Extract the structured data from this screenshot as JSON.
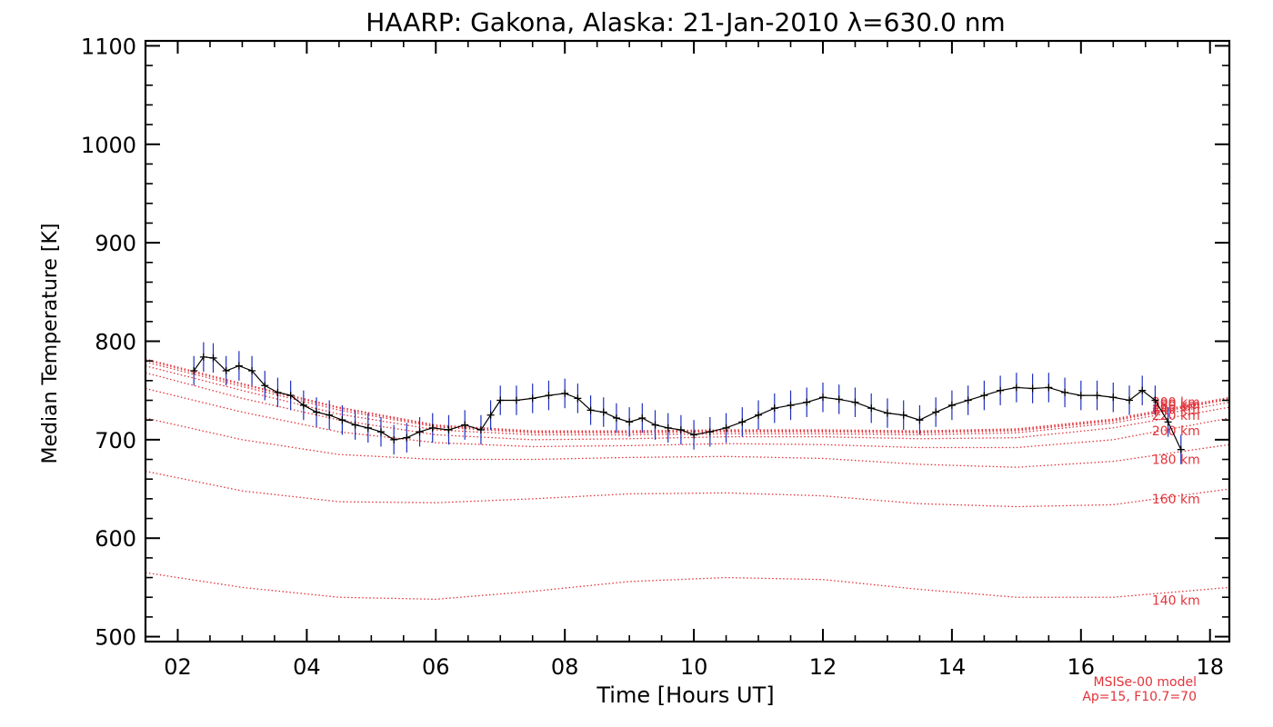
{
  "chart_data": {
    "type": "line",
    "title": "HAARP: Gakona,  Alaska: 21-Jan-2010 λ=630.0 nm",
    "xlabel": "Time [Hours UT]",
    "ylabel": "Median Temperature [K]",
    "xlim": [
      1.5,
      18.3
    ],
    "ylim": [
      495,
      1105
    ],
    "x_ticks": [
      2,
      4,
      6,
      8,
      10,
      12,
      14,
      16,
      18
    ],
    "x_tick_labels": [
      "02",
      "04",
      "06",
      "08",
      "10",
      "12",
      "14",
      "16",
      "18"
    ],
    "y_ticks": [
      500,
      600,
      700,
      800,
      900,
      1000,
      1100
    ],
    "y_tick_labels": [
      "500",
      "600",
      "700",
      "800",
      "900",
      "1000",
      "1100"
    ],
    "grid": false,
    "measured": {
      "color": "#000000",
      "error_bar_color": "#1f2fbf",
      "error": 15,
      "x": [
        2.25,
        2.4,
        2.55,
        2.75,
        2.95,
        3.15,
        3.35,
        3.55,
        3.75,
        3.95,
        4.15,
        4.35,
        4.55,
        4.75,
        4.95,
        5.15,
        5.35,
        5.55,
        5.75,
        5.95,
        6.2,
        6.45,
        6.7,
        6.85,
        7.0,
        7.25,
        7.5,
        7.75,
        8.0,
        8.2,
        8.4,
        8.6,
        8.8,
        9.0,
        9.2,
        9.4,
        9.6,
        9.8,
        10.0,
        10.25,
        10.5,
        10.75,
        11.0,
        11.25,
        11.5,
        11.75,
        12.0,
        12.25,
        12.5,
        12.75,
        13.0,
        13.25,
        13.5,
        13.75,
        14.0,
        14.25,
        14.5,
        14.75,
        15.0,
        15.25,
        15.5,
        15.75,
        16.0,
        16.25,
        16.5,
        16.75,
        16.95,
        17.15,
        17.35,
        17.55
      ],
      "y": [
        770,
        784,
        783,
        770,
        775,
        770,
        755,
        748,
        745,
        735,
        728,
        725,
        720,
        715,
        712,
        708,
        700,
        702,
        708,
        712,
        710,
        715,
        710,
        725,
        740,
        740,
        742,
        745,
        747,
        742,
        730,
        728,
        722,
        718,
        722,
        715,
        712,
        710,
        705,
        708,
        712,
        718,
        725,
        732,
        735,
        738,
        743,
        741,
        738,
        732,
        727,
        725,
        720,
        728,
        735,
        740,
        745,
        750,
        753,
        752,
        753,
        748,
        745,
        745,
        743,
        740,
        750,
        740,
        718,
        690
      ]
    },
    "model": {
      "name": "MSISe-00 model",
      "parameters": "Ap=15, F10.7=70",
      "color": "#e2333a",
      "series": [
        {
          "name": "140 km",
          "x": [
            1.5,
            3,
            4.5,
            6,
            7.5,
            9,
            10.5,
            12,
            13.5,
            15,
            16.5,
            18.3
          ],
          "y": [
            565,
            550,
            540,
            538,
            546,
            556,
            560,
            558,
            548,
            540,
            540,
            550
          ]
        },
        {
          "name": "160 km",
          "x": [
            1.5,
            3,
            4.5,
            6,
            7.5,
            9,
            10.5,
            12,
            13.5,
            15,
            16.5,
            18.3
          ],
          "y": [
            668,
            648,
            637,
            636,
            640,
            645,
            646,
            643,
            635,
            632,
            634,
            650
          ]
        },
        {
          "name": "180 km",
          "x": [
            1.5,
            3,
            4.5,
            6,
            7.5,
            9,
            10.5,
            12,
            13.5,
            15,
            16.5,
            18.3
          ],
          "y": [
            722,
            700,
            685,
            680,
            680,
            682,
            683,
            681,
            675,
            672,
            678,
            695
          ]
        },
        {
          "name": "200 km",
          "x": [
            1.5,
            3,
            4.5,
            6,
            7.5,
            9,
            10.5,
            12,
            13.5,
            15,
            16.5,
            18.3
          ],
          "y": [
            752,
            728,
            708,
            697,
            693,
            694,
            696,
            695,
            692,
            692,
            700,
            722
          ]
        },
        {
          "name": "220 km",
          "x": [
            1.5,
            3,
            4.5,
            6,
            7.5,
            9,
            10.5,
            12,
            13.5,
            15,
            16.5,
            18.3
          ],
          "y": [
            768,
            742,
            720,
            705,
            700,
            701,
            703,
            703,
            701,
            702,
            712,
            733
          ]
        },
        {
          "name": "240 km",
          "x": [
            1.5,
            3,
            4.5,
            6,
            7.5,
            9,
            10.5,
            12,
            13.5,
            15,
            16.5,
            18.3
          ],
          "y": [
            775,
            750,
            726,
            710,
            705,
            705,
            706,
            706,
            705,
            707,
            717,
            738
          ]
        },
        {
          "name": "260 km",
          "x": [
            1.5,
            3,
            4.5,
            6,
            7.5,
            9,
            10.5,
            12,
            13.5,
            15,
            16.5,
            18.3
          ],
          "y": [
            779,
            754,
            730,
            713,
            707,
            707,
            708,
            708,
            707,
            709,
            719,
            741
          ]
        },
        {
          "name": "280 km",
          "x": [
            1.5,
            3,
            4.5,
            6,
            7.5,
            9,
            10.5,
            12,
            13.5,
            15,
            16.5,
            18.3
          ],
          "y": [
            781,
            756,
            732,
            714,
            708,
            708,
            709,
            709,
            708,
            710,
            720,
            742
          ]
        },
        {
          "name": "300 km",
          "x": [
            1.5,
            3,
            4.5,
            6,
            7.5,
            9,
            10.5,
            12,
            13.5,
            15,
            16.5,
            18.3
          ],
          "y": [
            782,
            757,
            733,
            715,
            709,
            709,
            710,
            710,
            709,
            711,
            721,
            743
          ]
        }
      ],
      "label_x": 17.1,
      "label_y": [
        537,
        640,
        680,
        709,
        725,
        731,
        734,
        736,
        738
      ]
    }
  }
}
